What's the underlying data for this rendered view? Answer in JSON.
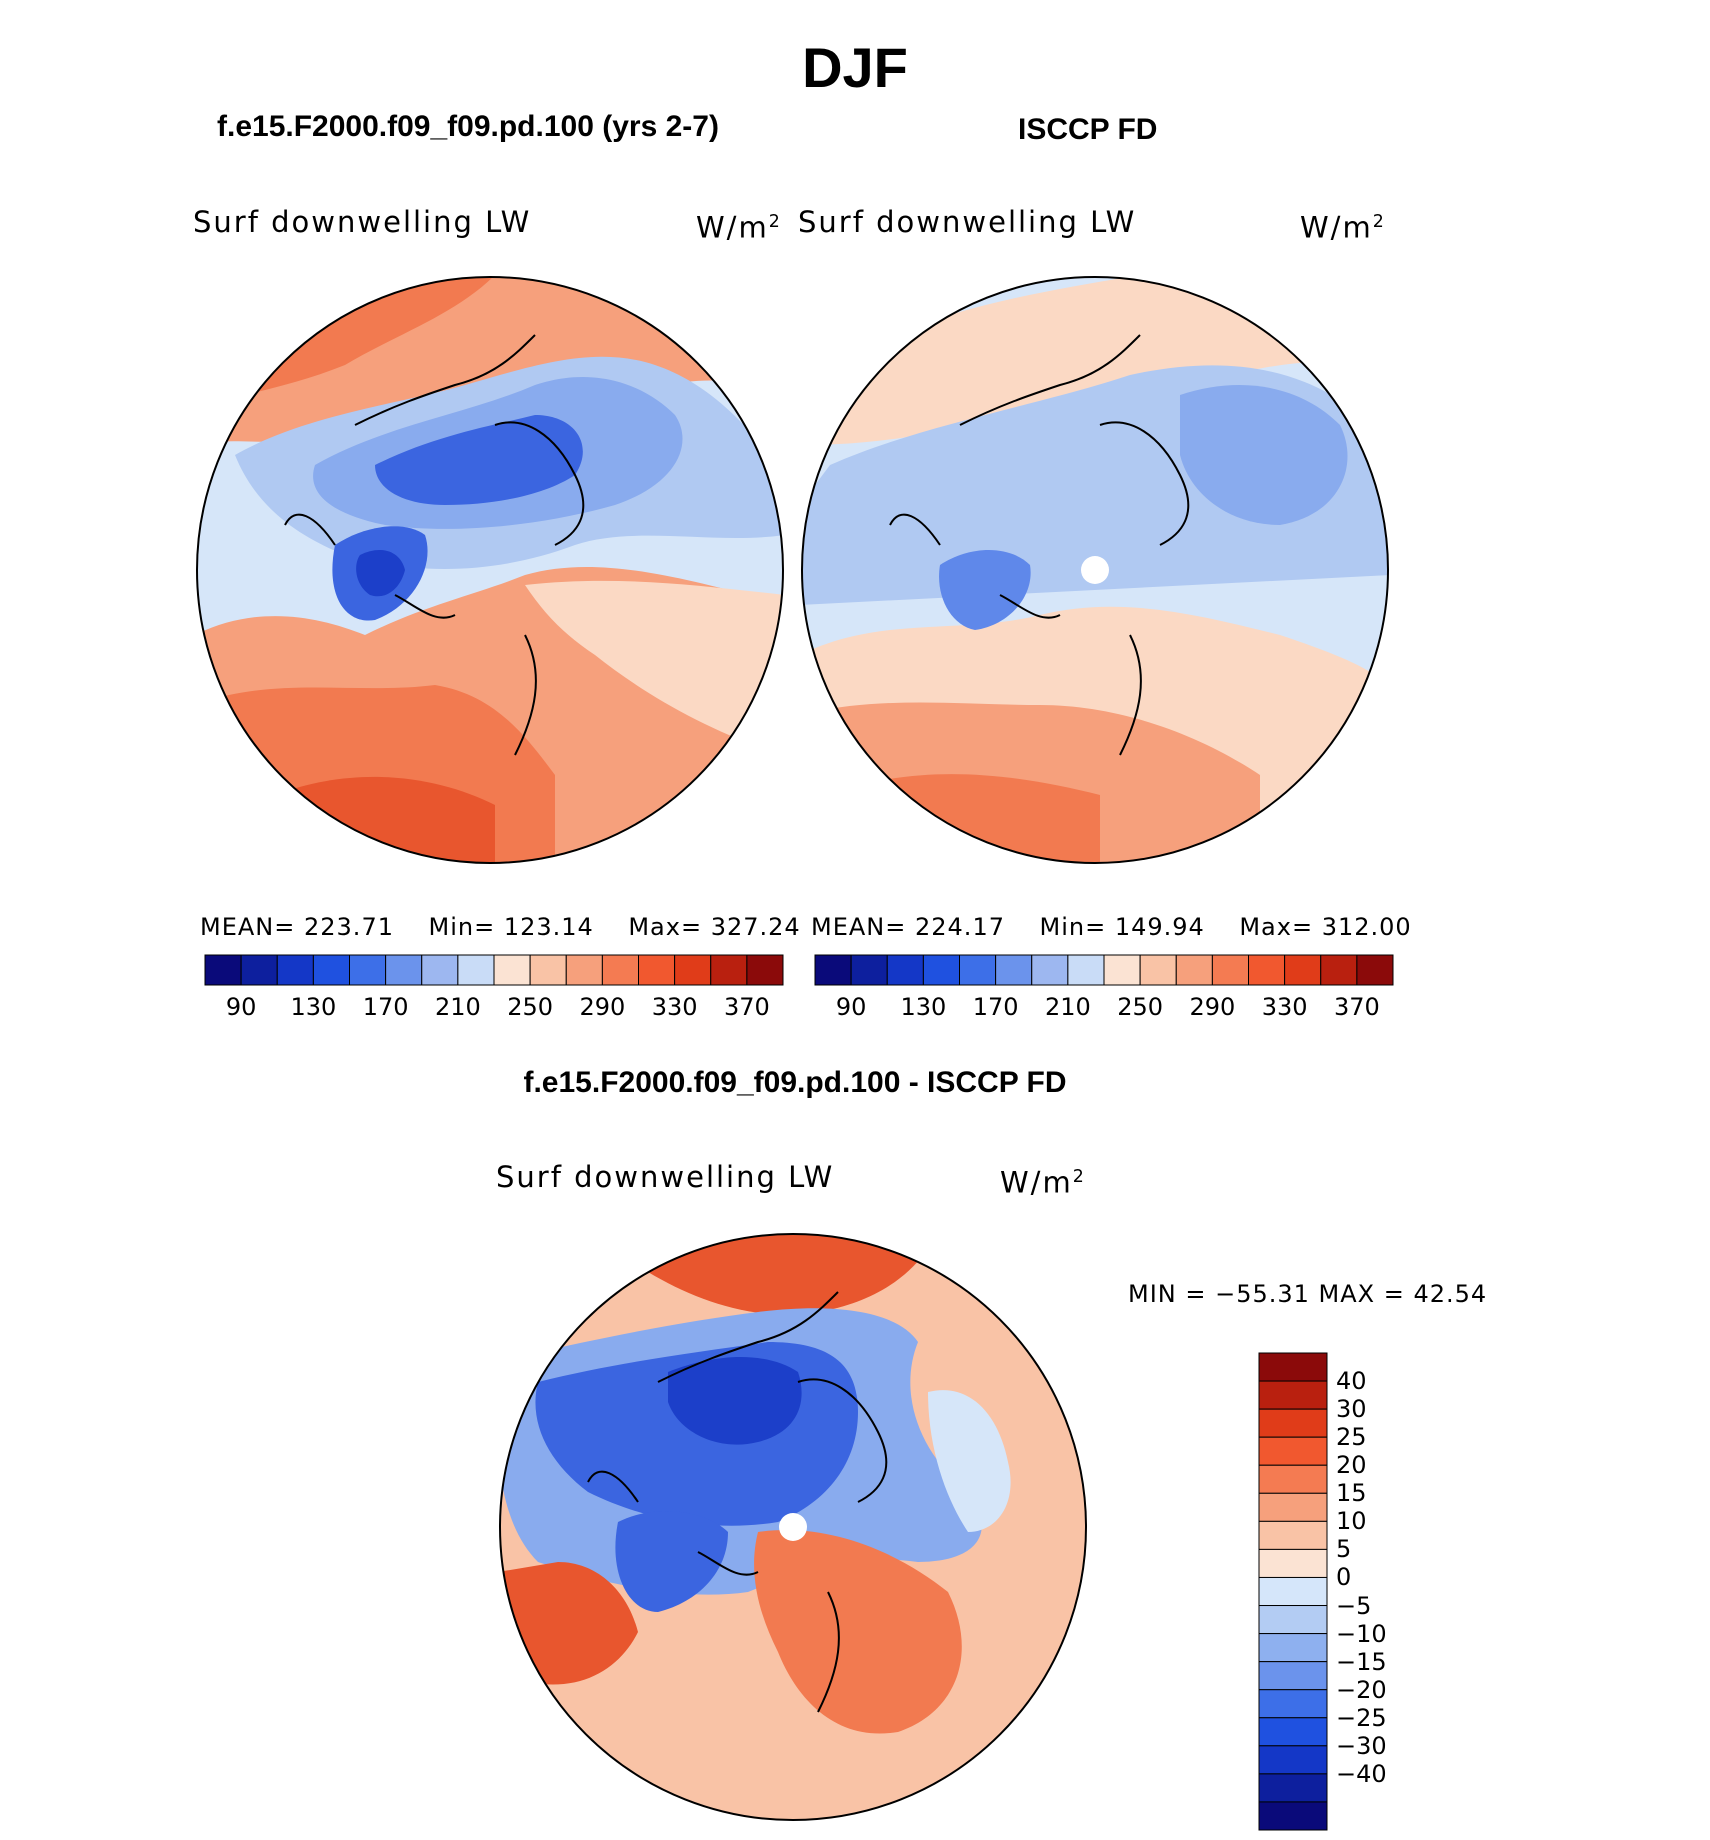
{
  "figure": {
    "title": "DJF",
    "left_case": "f.e15.F2000.f09_f09.pd.100 (yrs 2-7)",
    "right_case": "ISCCP FD",
    "diff_case": "f.e15.F2000.f09_f09.pd.100 - ISCCP FD"
  },
  "panels": [
    {
      "id": "model",
      "variable": "Surf downwelling LW",
      "units": "W/m",
      "units_sup": "2",
      "stats": {
        "mean_label": "MEAN=",
        "mean": "223.71",
        "min_label": "Min=",
        "min": "123.14",
        "max_label": "Max=",
        "max": "327.24"
      }
    },
    {
      "id": "obs",
      "variable": "Surf downwelling LW",
      "units": "W/m",
      "units_sup": "2",
      "stats": {
        "mean_label": "MEAN=",
        "mean": "224.17",
        "min_label": "Min=",
        "min": "149.94",
        "max_label": "Max=",
        "max": "312.00"
      }
    },
    {
      "id": "diff",
      "variable": "Surf downwelling LW",
      "units": "W/m",
      "units_sup": "2",
      "minmax": "MIN = −55.31  MAX =   42.54"
    }
  ],
  "colorbar_abs": {
    "colors": [
      "#0a0a7a",
      "#0d1f9e",
      "#1437c7",
      "#1f51e0",
      "#3d6fe8",
      "#6b93ec",
      "#9db7f0",
      "#c9dcf7",
      "#fbe3d3",
      "#f9c3a6",
      "#f6a07c",
      "#f47b52",
      "#f1582f",
      "#e03c19",
      "#b9200f",
      "#8b0a0a"
    ],
    "tick_labels": [
      "90",
      "130",
      "170",
      "210",
      "250",
      "290",
      "330",
      "370"
    ]
  },
  "colorbar_diff": {
    "colors": [
      "#8b0a0a",
      "#b9200f",
      "#e03c19",
      "#f1582f",
      "#f47b52",
      "#f6a07c",
      "#f9c3a6",
      "#fbe3d3",
      "#d5e6fa",
      "#b3ccf3",
      "#8eb0ef",
      "#6b93ec",
      "#3d6fe8",
      "#1f51e0",
      "#1437c7",
      "#0d1f9e",
      "#0a0a7a"
    ],
    "tick_labels": [
      "40",
      "30",
      "25",
      "20",
      "15",
      "10",
      "5",
      "0",
      "−5",
      "−10",
      "−15",
      "−20",
      "−25",
      "−30",
      "−40"
    ]
  },
  "map_colors": {
    "warm_dark": "#e8562e",
    "warm": "#f27a50",
    "warm_mid": "#f6a07c",
    "warm_light": "#fbd9c4",
    "neutral_light": "#d6e6f9",
    "cool_light": "#b0c9f2",
    "cool": "#89abee",
    "cool_mid": "#5f88ea",
    "cool_dark": "#3b65e0",
    "cool_deep": "#1c3fc9",
    "missing": "#ffffff"
  }
}
